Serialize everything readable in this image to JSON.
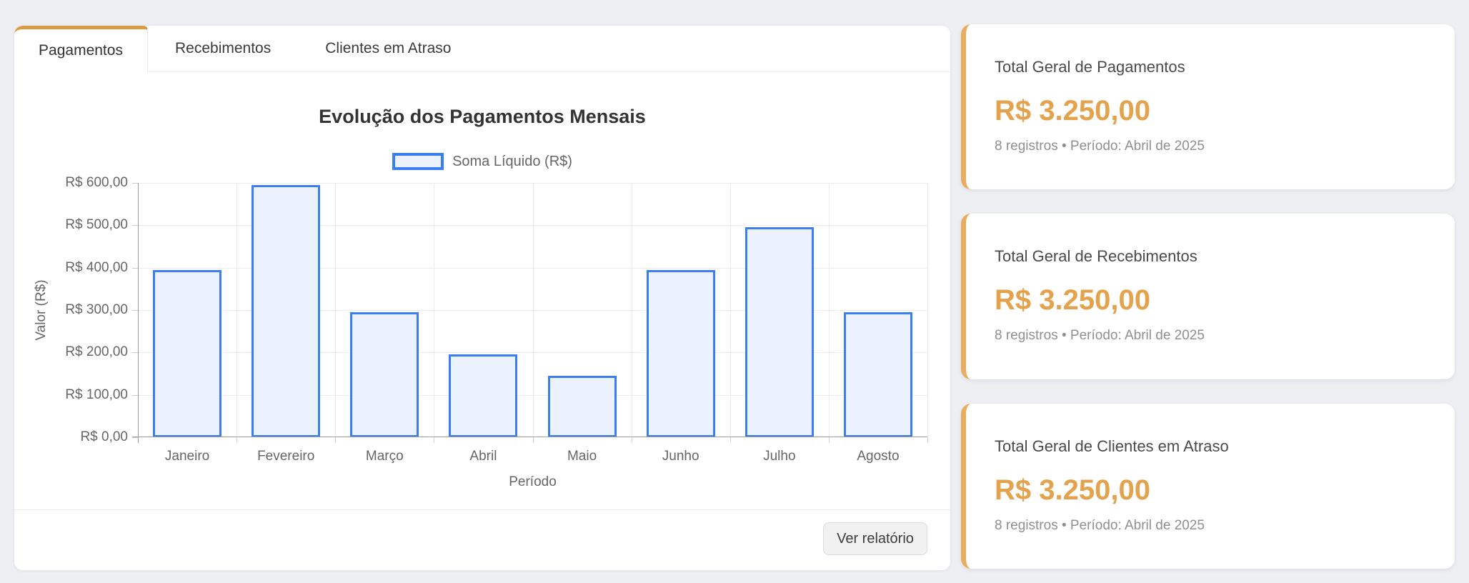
{
  "colors": {
    "page_bg": "#edeff3",
    "accent_orange": "#d99b41",
    "card_accent": "#eaac5e",
    "value_orange": "#e4a24c",
    "bar_border_blue": "#3b7df2",
    "bar_fill_blue": "#ebf2fd"
  },
  "tabs": [
    {
      "label": "Pagamentos",
      "active": true
    },
    {
      "label": "Recebimentos",
      "active": false
    },
    {
      "label": "Clientes em Atraso",
      "active": false
    }
  ],
  "chart_data": {
    "type": "bar",
    "title": "Evolução dos Pagamentos Mensais",
    "legend": "Soma Líquido (R$)",
    "legend_position": "top",
    "categories": [
      "Janeiro",
      "Fevereiro",
      "Março",
      "Abril",
      "Maio",
      "Junho",
      "Julho",
      "Agosto"
    ],
    "values": [
      395,
      595,
      295,
      195,
      145,
      395,
      495,
      295
    ],
    "xlabel": "Período",
    "ylabel": "Valor (R$)",
    "ylim": [
      0,
      600
    ],
    "ytick_step": 100,
    "ytick_labels": [
      "R$ 0,00",
      "R$ 100,00",
      "R$ 200,00",
      "R$ 300,00",
      "R$ 400,00",
      "R$ 500,00",
      "R$ 600,00"
    ],
    "grid": true
  },
  "footer": {
    "button_label": "Ver relatório"
  },
  "cards": [
    {
      "title": "Total Geral de Pagamentos",
      "value": "R$ 3.250,00",
      "meta": "8 registros • Período: Abril de 2025"
    },
    {
      "title": "Total Geral de Recebimentos",
      "value": "R$ 3.250,00",
      "meta": "8 registros • Período: Abril de 2025"
    },
    {
      "title": "Total Geral de Clientes em Atraso",
      "value": "R$ 3.250,00",
      "meta": "8 registros • Período: Abril de 2025"
    }
  ]
}
